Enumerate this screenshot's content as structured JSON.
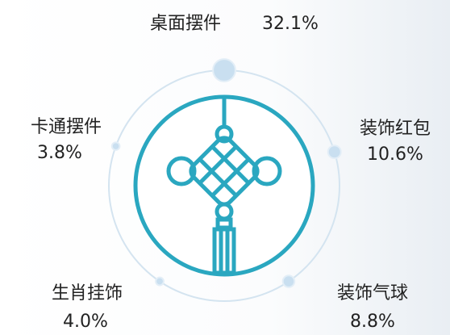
{
  "chart_data": {
    "type": "radial",
    "categories": [
      "桌面摆件",
      "装饰红包",
      "装饰气球",
      "生肖挂饰",
      "卡通摆件"
    ],
    "values": [
      32.1,
      10.6,
      8.8,
      4.0,
      3.8
    ],
    "value_labels": [
      "32.1%",
      "10.6%",
      "8.8%",
      "4.0%",
      "3.8%"
    ],
    "color": "#c9dff0",
    "ring_color": "#2aa7c0"
  }
}
